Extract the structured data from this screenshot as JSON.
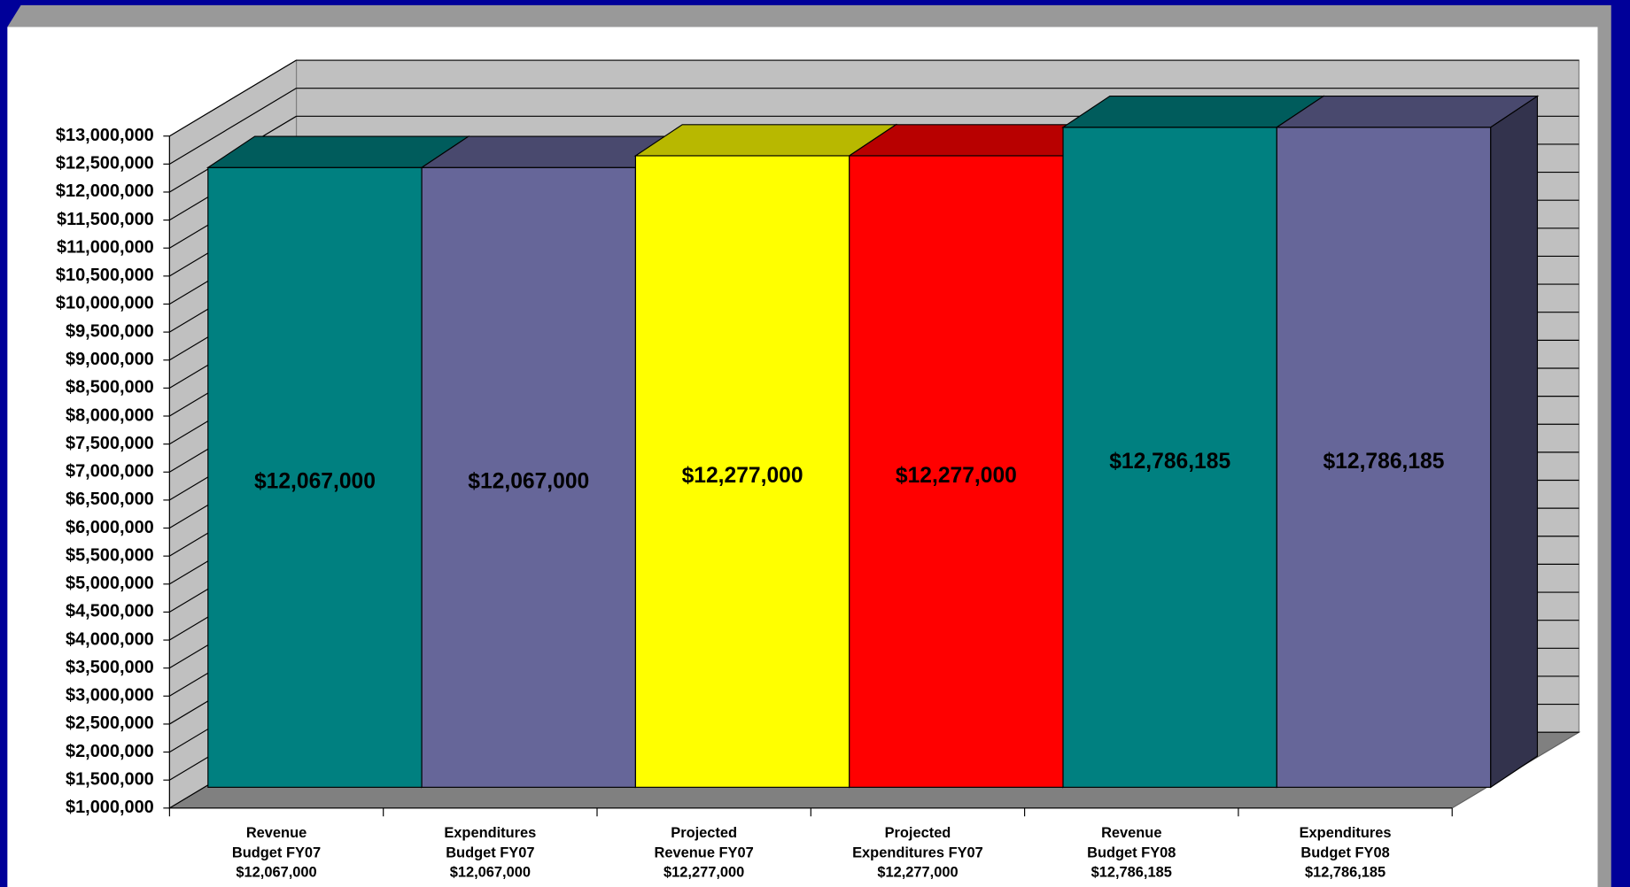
{
  "chart_data": {
    "type": "bar3d",
    "categories": [
      "Revenue\nBudget FY07\n$12,067,000",
      "Expenditures\nBudget FY07\n$12,067,000",
      "Projected\nRevenue FY07\n$12,277,000",
      "Projected\nExpenditures FY07\n$12,277,000",
      "Revenue\nBudget FY08\n$12,786,185",
      "Expenditures\nBudget FY08\n$12,786,185"
    ],
    "values": [
      12067000,
      12067000,
      12277000,
      12277000,
      12786185,
      12786185
    ],
    "value_labels": [
      "$12,067,000",
      "$12,067,000",
      "$12,277,000",
      "$12,277,000",
      "$12,786,185",
      "$12,786,185"
    ],
    "colors": [
      "#008080",
      "#666699",
      "#ffff00",
      "#ff0000",
      "#008080",
      "#666699"
    ],
    "ylim": [
      1000000,
      13000000
    ],
    "yticks": [
      {
        "value": 1000000,
        "label": "$1,000,000"
      },
      {
        "value": 1500000,
        "label": "$1,500,000"
      },
      {
        "value": 2000000,
        "label": "$2,000,000"
      },
      {
        "value": 2500000,
        "label": "$2,500,000"
      },
      {
        "value": 3000000,
        "label": "$3,000,000"
      },
      {
        "value": 3500000,
        "label": "$3,500,000"
      },
      {
        "value": 4000000,
        "label": "$4,000,000"
      },
      {
        "value": 4500000,
        "label": "$4,500,000"
      },
      {
        "value": 5000000,
        "label": "$5,000,000"
      },
      {
        "value": 5500000,
        "label": "$5,500,000"
      },
      {
        "value": 6000000,
        "label": "$6,000,000"
      },
      {
        "value": 6500000,
        "label": "$6,500,000"
      },
      {
        "value": 7000000,
        "label": "$7,000,000"
      },
      {
        "value": 7500000,
        "label": "$7,500,000"
      },
      {
        "value": 8000000,
        "label": "$8,000,000"
      },
      {
        "value": 8500000,
        "label": "$8,500,000"
      },
      {
        "value": 9000000,
        "label": "$9,000,000"
      },
      {
        "value": 9500000,
        "label": "$9,500,000"
      },
      {
        "value": 10000000,
        "label": "$10,000,000"
      },
      {
        "value": 10500000,
        "label": "$10,500,000"
      },
      {
        "value": 11000000,
        "label": "$11,000,000"
      },
      {
        "value": 11500000,
        "label": "$11,500,000"
      },
      {
        "value": 12000000,
        "label": "$12,000,000"
      },
      {
        "value": 12500000,
        "label": "$12,500,000"
      },
      {
        "value": 13000000,
        "label": "$13,000,000"
      }
    ],
    "grid": true
  }
}
